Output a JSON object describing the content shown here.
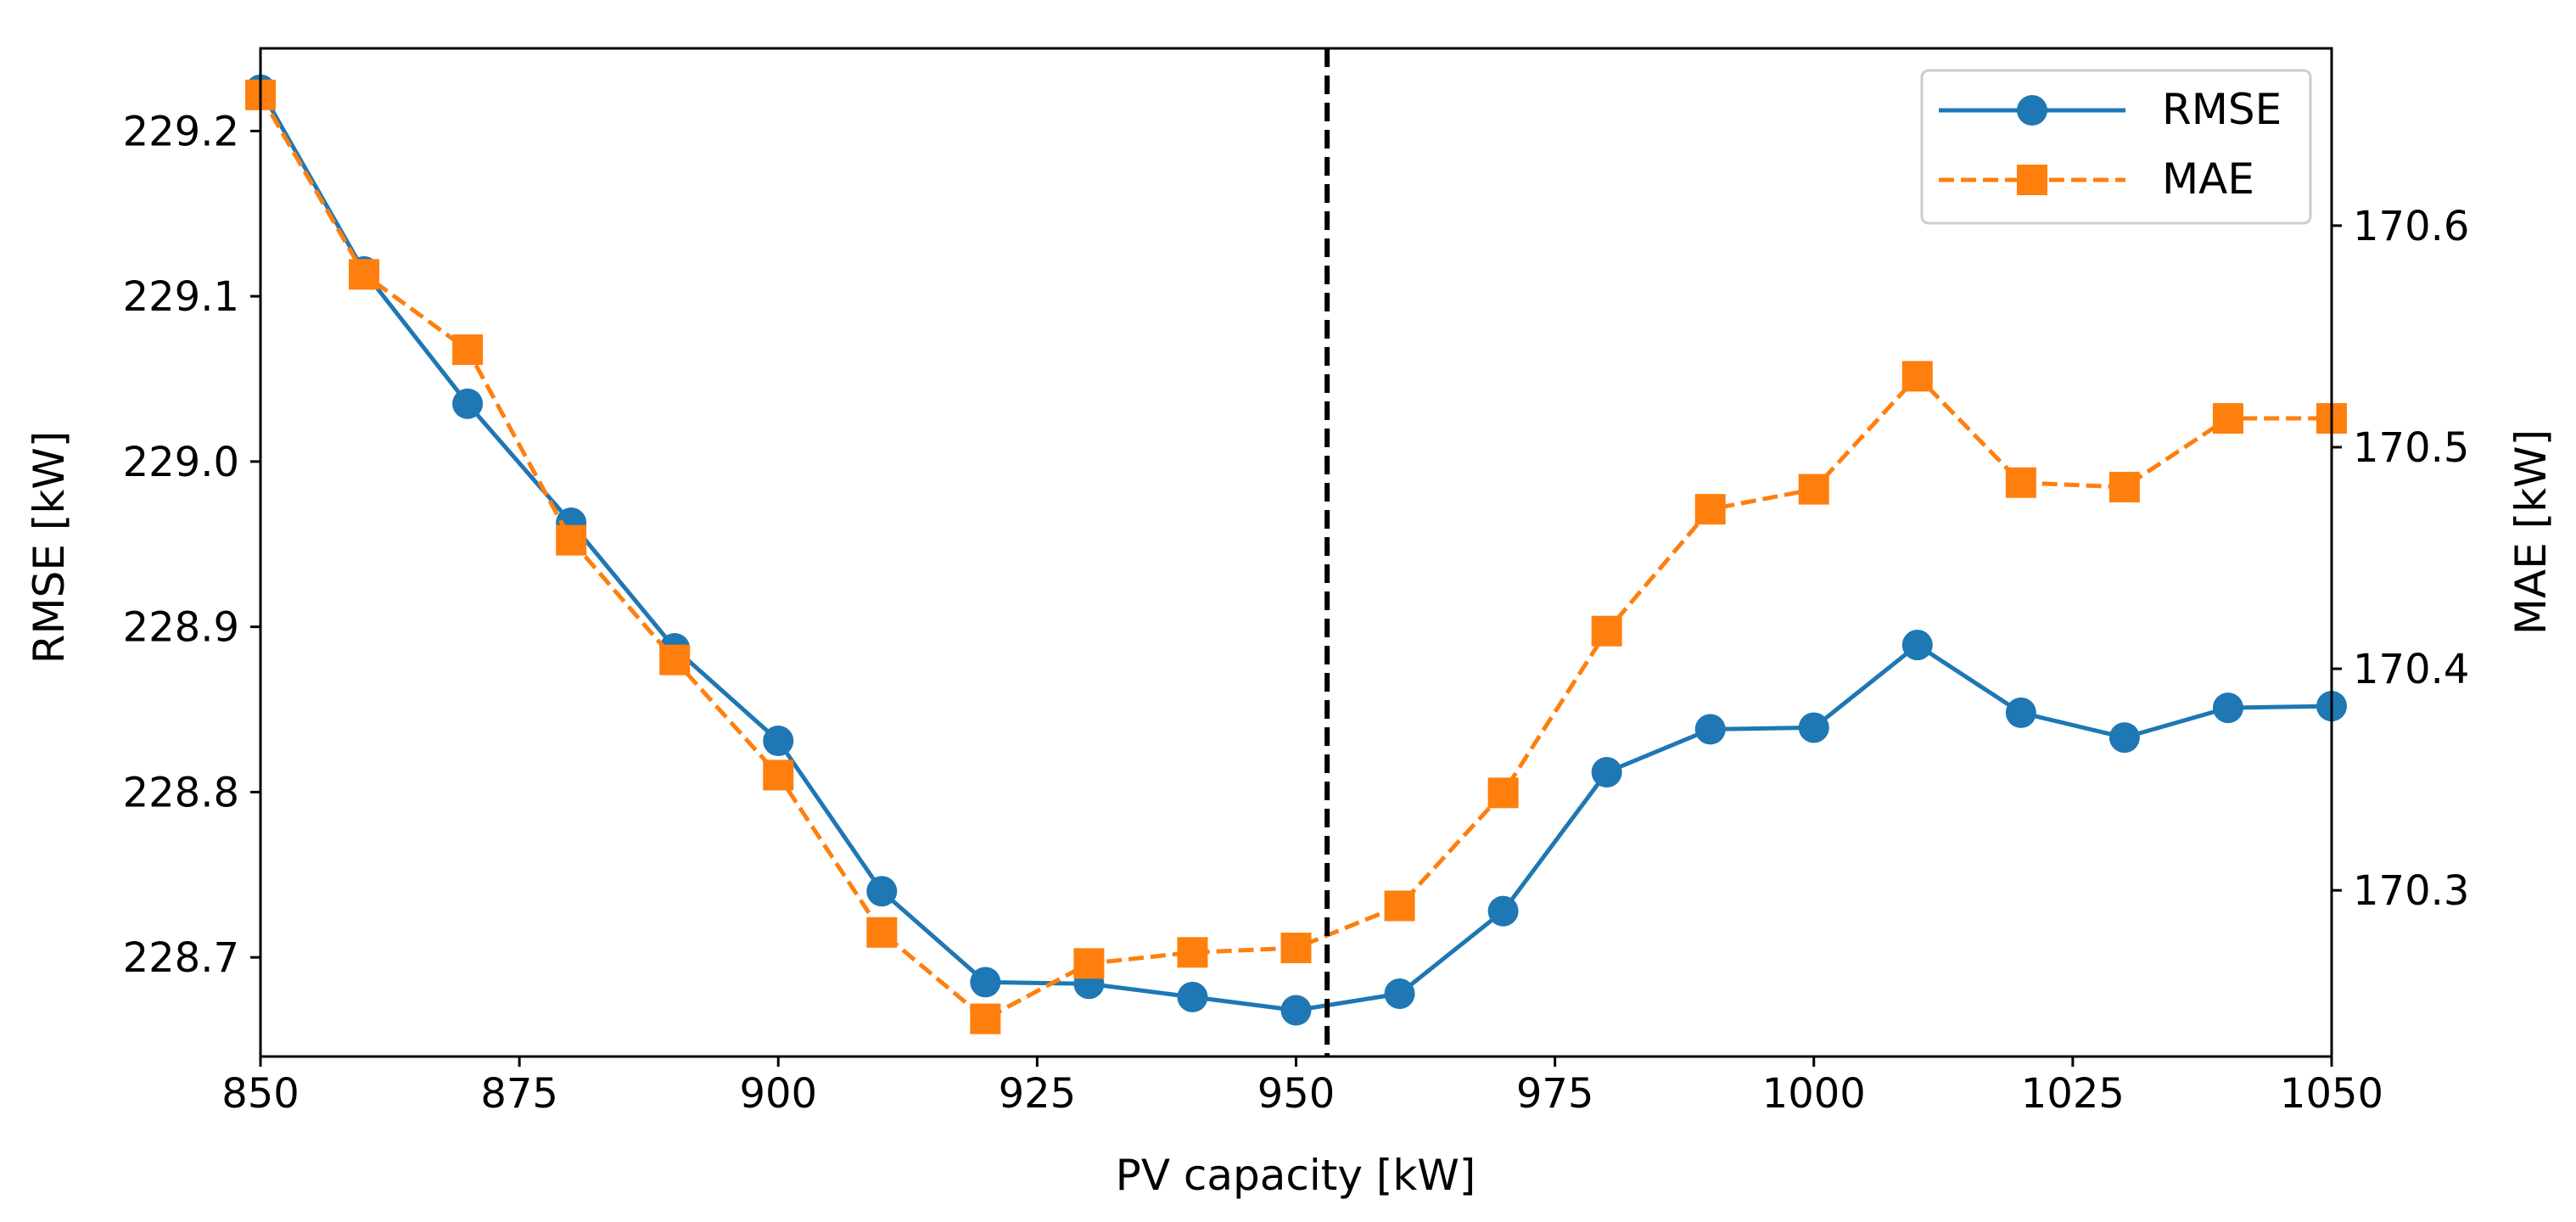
{
  "chart_data": {
    "type": "line",
    "title": "",
    "xlabel": "PV capacity [kW]",
    "ylabel_left": "RMSE [kW]",
    "ylabel_right": "MAE [kW]",
    "xlim": [
      850,
      1050
    ],
    "ylim_left": [
      228.64,
      229.25
    ],
    "ylim_right": [
      170.225,
      170.68
    ],
    "x_ticks": [
      "850",
      "875",
      "900",
      "925",
      "950",
      "975",
      "1000",
      "1025",
      "1050"
    ],
    "y_left_ticks": [
      "228.7",
      "228.8",
      "228.9",
      "229.0",
      "229.1",
      "229.2"
    ],
    "y_right_ticks": [
      "170.3",
      "170.4",
      "170.5",
      "170.6"
    ],
    "vline_x": 953,
    "grid": false,
    "legend_position": "top-right",
    "x": [
      850,
      860,
      870,
      880,
      890,
      900,
      910,
      920,
      930,
      940,
      950,
      960,
      970,
      980,
      990,
      1000,
      1010,
      1020,
      1030,
      1040,
      1050
    ],
    "series": [
      {
        "name": "RMSE",
        "axis": "left",
        "color": "#1f77b4",
        "marker": "circle",
        "linestyle": "solid",
        "values": [
          229.225,
          229.115,
          229.035,
          228.963,
          228.887,
          228.831,
          228.74,
          228.685,
          228.684,
          228.676,
          228.668,
          228.678,
          228.728,
          228.812,
          228.838,
          228.839,
          228.889,
          228.848,
          228.833,
          228.851,
          228.852
        ]
      },
      {
        "name": "MAE",
        "axis": "right",
        "color": "#ff7f0e",
        "marker": "square",
        "linestyle": "dashed",
        "values": [
          170.659,
          170.578,
          170.544,
          170.458,
          170.404,
          170.352,
          170.281,
          170.242,
          170.267,
          170.272,
          170.274,
          170.293,
          170.344,
          170.417,
          170.472,
          170.481,
          170.532,
          170.484,
          170.482,
          170.513,
          170.513
        ]
      }
    ]
  }
}
